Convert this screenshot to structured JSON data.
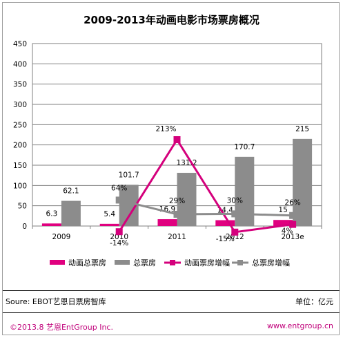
{
  "title": "2009-2013年动画电影市场票房概况",
  "footer": {
    "source": "Soure: EBOT艺恩日票房智库",
    "unit": "单位：亿元",
    "copyright": "©2013.8  艺恩EntGroup Inc.",
    "website": "www.entgroup.cn"
  },
  "colors": {
    "animation": "#e0007f",
    "total": "#8c8c8c",
    "growth_animation": "#d4007c",
    "growth_total": "#8c8c8c"
  },
  "chart_data": {
    "type": "bar",
    "categories": [
      "2009",
      "2010",
      "2011",
      "2012",
      "2013e"
    ],
    "ylim": [
      0,
      450
    ],
    "yticks": [
      "0",
      "50",
      "100",
      "150",
      "200",
      "250",
      "300",
      "350",
      "400",
      "450"
    ],
    "grid": true,
    "legend_position": "bottom",
    "series": [
      {
        "name": "动画总票房",
        "kind": "bar",
        "color": "#e0007f",
        "values": [
          6.3,
          5.4,
          16.9,
          14.4,
          15
        ],
        "labels": [
          "6.3",
          "5.4",
          "16.9",
          "14.4",
          "15"
        ]
      },
      {
        "name": "总票房",
        "kind": "bar",
        "color": "#8c8c8c",
        "values": [
          62.1,
          101.7,
          131.2,
          170.7,
          215
        ],
        "labels": [
          "62.1",
          "101.7",
          "131.2",
          "170.7",
          "215"
        ]
      },
      {
        "name": "动画票房增幅",
        "kind": "line",
        "marker": "square",
        "color": "#d4007c",
        "unit": "%",
        "values": [
          null,
          -14,
          213,
          -15,
          4
        ],
        "labels": [
          null,
          "-14%",
          "213%",
          "-15%",
          "4%"
        ]
      },
      {
        "name": "总票房增幅",
        "kind": "line",
        "marker": "square",
        "color": "#8c8c8c",
        "unit": "%",
        "values": [
          null,
          64,
          29,
          30,
          26
        ],
        "labels": [
          null,
          "64%",
          "29%",
          "30%",
          "26%"
        ]
      }
    ]
  }
}
